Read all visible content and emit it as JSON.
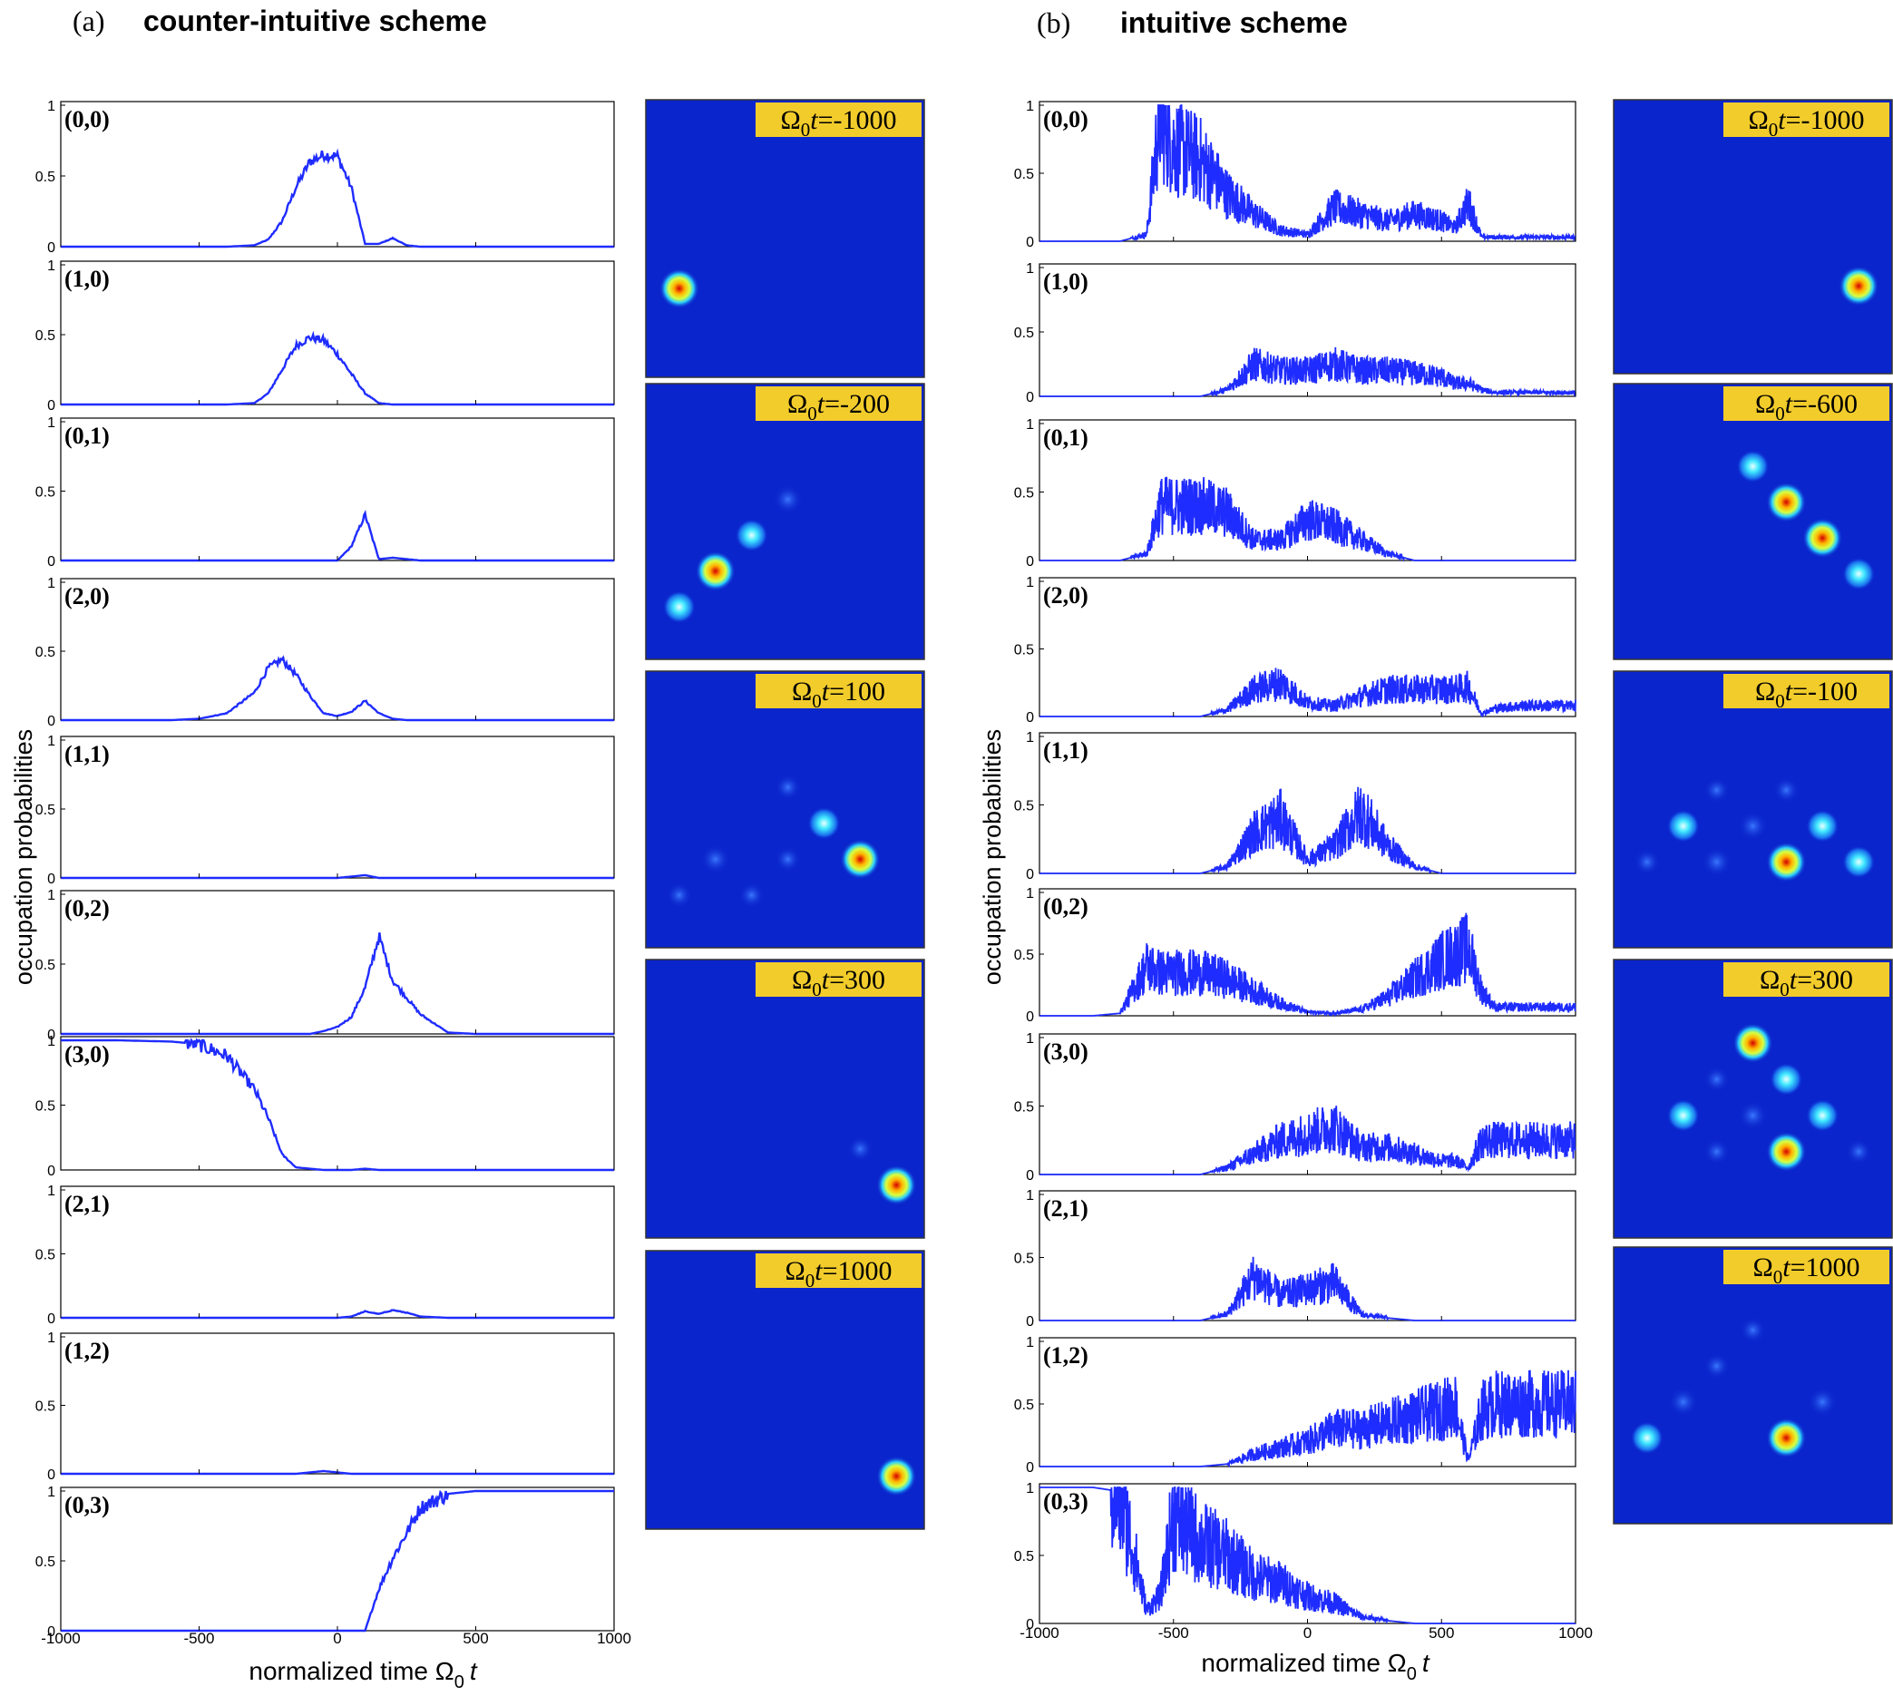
{
  "panels": [
    {
      "letter": "(a)",
      "title": "counter-intuitive scheme",
      "ylabel": "occupation probabilities",
      "xlabel": "normalized time Ω",
      "xlabel_sub": "0",
      "xlabel_var": "t",
      "xticks": [
        -1000,
        -500,
        0,
        500,
        1000
      ],
      "yticks": [
        0,
        0.5,
        1
      ],
      "states": [
        "(0,0)",
        "(1,0)",
        "(0,1)",
        "(2,0)",
        "(1,1)",
        "(0,2)",
        "(3,0)",
        "(2,1)",
        "(1,2)",
        "(0,3)"
      ],
      "snapshots": [
        {
          "label": "=-1000",
          "spots": [
            {
              "x": 0.12,
              "y": 0.68,
              "r": 1.0
            }
          ]
        },
        {
          "label": "=-200",
          "spots": [
            {
              "x": 0.12,
              "y": 0.81,
              "r": 0.3
            },
            {
              "x": 0.25,
              "y": 0.68,
              "r": 0.7
            },
            {
              "x": 0.38,
              "y": 0.55,
              "r": 0.3
            },
            {
              "x": 0.51,
              "y": 0.42,
              "r": 0.1
            }
          ]
        },
        {
          "label": "=100",
          "spots": [
            {
              "x": 0.25,
              "y": 0.68,
              "r": 0.1
            },
            {
              "x": 0.51,
              "y": 0.68,
              "r": 0.05
            },
            {
              "x": 0.64,
              "y": 0.55,
              "r": 0.4
            },
            {
              "x": 0.77,
              "y": 0.68,
              "r": 0.85
            },
            {
              "x": 0.51,
              "y": 0.42,
              "r": 0.05
            },
            {
              "x": 0.12,
              "y": 0.81,
              "r": 0.03
            },
            {
              "x": 0.38,
              "y": 0.81,
              "r": 0.05
            }
          ]
        },
        {
          "label": "=300",
          "spots": [
            {
              "x": 0.77,
              "y": 0.68,
              "r": 0.05
            },
            {
              "x": 0.9,
              "y": 0.81,
              "r": 0.9
            }
          ]
        },
        {
          "label": "=1000",
          "spots": [
            {
              "x": 0.9,
              "y": 0.81,
              "r": 0.95
            }
          ]
        }
      ]
    },
    {
      "letter": "(b)",
      "title": "intuitive scheme",
      "ylabel": "occupation probabilities",
      "xlabel": "normalized time Ω",
      "xlabel_sub": "0",
      "xlabel_var": "t",
      "xticks": [
        -1000,
        -500,
        0,
        500,
        1000
      ],
      "yticks": [
        0,
        0.5,
        1
      ],
      "states": [
        "(0,0)",
        "(1,0)",
        "(0,1)",
        "(2,0)",
        "(1,1)",
        "(0,2)",
        "(3,0)",
        "(2,1)",
        "(1,2)",
        "(0,3)"
      ],
      "snapshots": [
        {
          "label": "=-1000",
          "spots": [
            {
              "x": 0.88,
              "y": 0.68,
              "r": 1.0
            }
          ]
        },
        {
          "label": "=-600",
          "spots": [
            {
              "x": 0.5,
              "y": 0.3,
              "r": 0.2
            },
            {
              "x": 0.62,
              "y": 0.43,
              "r": 0.85
            },
            {
              "x": 0.75,
              "y": 0.56,
              "r": 0.85
            },
            {
              "x": 0.88,
              "y": 0.69,
              "r": 0.2
            }
          ]
        },
        {
          "label": "=-100",
          "spots": [
            {
              "x": 0.25,
              "y": 0.56,
              "r": 0.25
            },
            {
              "x": 0.5,
              "y": 0.56,
              "r": 0.1
            },
            {
              "x": 0.75,
              "y": 0.56,
              "r": 0.25
            },
            {
              "x": 0.62,
              "y": 0.69,
              "r": 0.85
            },
            {
              "x": 0.88,
              "y": 0.69,
              "r": 0.25
            },
            {
              "x": 0.37,
              "y": 0.69,
              "r": 0.1
            },
            {
              "x": 0.37,
              "y": 0.43,
              "r": 0.05
            },
            {
              "x": 0.62,
              "y": 0.43,
              "r": 0.05
            },
            {
              "x": 0.12,
              "y": 0.69,
              "r": 0.02
            }
          ]
        },
        {
          "label": "=300",
          "spots": [
            {
              "x": 0.5,
              "y": 0.3,
              "r": 0.85
            },
            {
              "x": 0.62,
              "y": 0.43,
              "r": 0.25
            },
            {
              "x": 0.25,
              "y": 0.56,
              "r": 0.4
            },
            {
              "x": 0.5,
              "y": 0.56,
              "r": 0.1
            },
            {
              "x": 0.75,
              "y": 0.56,
              "r": 0.3
            },
            {
              "x": 0.62,
              "y": 0.69,
              "r": 0.85
            },
            {
              "x": 0.37,
              "y": 0.69,
              "r": 0.05
            },
            {
              "x": 0.88,
              "y": 0.69,
              "r": 0.05
            },
            {
              "x": 0.37,
              "y": 0.43,
              "r": 0.02
            }
          ]
        },
        {
          "label": "=1000",
          "spots": [
            {
              "x": 0.5,
              "y": 0.3,
              "r": 0.05
            },
            {
              "x": 0.37,
              "y": 0.43,
              "r": 0.05
            },
            {
              "x": 0.25,
              "y": 0.56,
              "r": 0.1
            },
            {
              "x": 0.75,
              "y": 0.56,
              "r": 0.1
            },
            {
              "x": 0.12,
              "y": 0.69,
              "r": 0.4
            },
            {
              "x": 0.62,
              "y": 0.69,
              "r": 0.85
            }
          ]
        }
      ]
    }
  ],
  "snapshot_prefix": "Ω",
  "snapshot_sub": "0",
  "snapshot_var": "t",
  "colors": {
    "line": "#1f2cff",
    "field": "#0a25cc",
    "badge": "#f2cc2b"
  },
  "chart_data": [
    {
      "type": "line",
      "title": "counter-intuitive scheme",
      "xlabel": "normalized time Ω0 t",
      "ylabel": "occupation probabilities",
      "xlim": [
        -1000,
        1000
      ],
      "ylim": [
        0,
        1
      ],
      "x": [
        -1000,
        -800,
        -600,
        -500,
        -400,
        -300,
        -250,
        -200,
        -150,
        -100,
        -50,
        0,
        50,
        100,
        150,
        200,
        250,
        300,
        400,
        500,
        600,
        800,
        1000
      ],
      "series": [
        {
          "name": "(0,0)",
          "values": [
            0,
            0,
            0,
            0,
            0,
            0.01,
            0.05,
            0.18,
            0.42,
            0.6,
            0.65,
            0.64,
            0.42,
            0.02,
            0.02,
            0.06,
            0.01,
            0,
            0,
            0,
            0,
            0,
            0
          ]
        },
        {
          "name": "(1,0)",
          "values": [
            0,
            0,
            0,
            0,
            0,
            0.01,
            0.08,
            0.25,
            0.42,
            0.48,
            0.46,
            0.36,
            0.22,
            0.08,
            0.01,
            0,
            0,
            0,
            0,
            0,
            0,
            0,
            0
          ]
        },
        {
          "name": "(0,1)",
          "values": [
            0,
            0,
            0,
            0,
            0,
            0,
            0,
            0,
            0,
            0,
            0,
            0,
            0.1,
            0.33,
            0.01,
            0.02,
            0.01,
            0,
            0,
            0,
            0,
            0,
            0
          ]
        },
        {
          "name": "(2,0)",
          "values": [
            0,
            0,
            0,
            0.01,
            0.05,
            0.2,
            0.38,
            0.44,
            0.33,
            0.18,
            0.05,
            0.03,
            0.06,
            0.14,
            0.05,
            0.01,
            0,
            0,
            0,
            0,
            0,
            0,
            0
          ]
        },
        {
          "name": "(1,1)",
          "values": [
            0,
            0,
            0,
            0,
            0,
            0,
            0,
            0,
            0,
            0,
            0,
            0,
            0.01,
            0.02,
            0,
            0,
            0,
            0,
            0,
            0,
            0,
            0,
            0
          ]
        },
        {
          "name": "(0,2)",
          "values": [
            0,
            0,
            0,
            0,
            0,
            0,
            0,
            0,
            0,
            0,
            0.02,
            0.05,
            0.12,
            0.33,
            0.7,
            0.38,
            0.26,
            0.14,
            0.01,
            0,
            0,
            0,
            0
          ]
        },
        {
          "name": "(3,0)",
          "values": [
            1,
            1,
            0.99,
            0.97,
            0.88,
            0.62,
            0.4,
            0.12,
            0.02,
            0.01,
            0,
            0,
            0,
            0.01,
            0,
            0,
            0,
            0,
            0,
            0,
            0,
            0,
            0
          ]
        },
        {
          "name": "(2,1)",
          "values": [
            0,
            0,
            0,
            0,
            0,
            0,
            0,
            0,
            0,
            0,
            0,
            0,
            0.01,
            0.05,
            0.03,
            0.06,
            0.04,
            0.01,
            0,
            0,
            0,
            0,
            0
          ]
        },
        {
          "name": "(1,2)",
          "values": [
            0,
            0,
            0,
            0,
            0,
            0,
            0,
            0,
            0,
            0.01,
            0.02,
            0.01,
            0,
            0,
            0,
            0,
            0,
            0,
            0,
            0,
            0,
            0,
            0
          ]
        },
        {
          "name": "(0,3)",
          "values": [
            0,
            0,
            0,
            0,
            0,
            0,
            0,
            0,
            0,
            0,
            0,
            0,
            0,
            0,
            0.3,
            0.52,
            0.7,
            0.88,
            0.98,
            1,
            1,
            1,
            1
          ]
        }
      ]
    },
    {
      "type": "line",
      "title": "intuitive scheme",
      "xlabel": "normalized time Ω0 t",
      "ylabel": "occupation probabilities",
      "xlim": [
        -1000,
        1000
      ],
      "ylim": [
        0,
        1
      ],
      "x": [
        -1000,
        -800,
        -700,
        -600,
        -550,
        -500,
        -400,
        -300,
        -200,
        -100,
        0,
        100,
        200,
        300,
        400,
        500,
        550,
        600,
        650,
        700,
        800,
        1000
      ],
      "series": [
        {
          "name": "(0,0)",
          "values": [
            0,
            0,
            0,
            0.05,
            0.95,
            0.7,
            0.6,
            0.35,
            0.2,
            0.08,
            0.05,
            0.25,
            0.2,
            0.15,
            0.2,
            0.15,
            0.1,
            0.28,
            0.03,
            0.03,
            0.03,
            0.03
          ]
        },
        {
          "name": "(1,0)",
          "values": [
            0,
            0,
            0,
            0,
            0,
            0,
            0,
            0.05,
            0.25,
            0.2,
            0.2,
            0.25,
            0.2,
            0.2,
            0.18,
            0.15,
            0.1,
            0.1,
            0.05,
            0.03,
            0.03,
            0.03
          ]
        },
        {
          "name": "(0,1)",
          "values": [
            0,
            0,
            0,
            0.05,
            0.4,
            0.4,
            0.4,
            0.35,
            0.15,
            0.15,
            0.3,
            0.25,
            0.15,
            0.05,
            0,
            0,
            0,
            0,
            0,
            0,
            0,
            0
          ]
        },
        {
          "name": "(2,0)",
          "values": [
            0,
            0,
            0,
            0,
            0,
            0,
            0,
            0.05,
            0.2,
            0.25,
            0.1,
            0.08,
            0.15,
            0.2,
            0.2,
            0.2,
            0.2,
            0.22,
            0.02,
            0.06,
            0.08,
            0.08
          ]
        },
        {
          "name": "(1,1)",
          "values": [
            0,
            0,
            0,
            0,
            0,
            0,
            0,
            0.05,
            0.3,
            0.4,
            0.1,
            0.2,
            0.45,
            0.2,
            0.05,
            0,
            0,
            0,
            0,
            0,
            0,
            0
          ]
        },
        {
          "name": "(0,2)",
          "values": [
            0,
            0,
            0.02,
            0.4,
            0.35,
            0.35,
            0.35,
            0.3,
            0.2,
            0.1,
            0.03,
            0.02,
            0.05,
            0.15,
            0.3,
            0.45,
            0.5,
            0.55,
            0.2,
            0.07,
            0.07,
            0.07
          ]
        },
        {
          "name": "(3,0)",
          "values": [
            0,
            0,
            0,
            0,
            0,
            0,
            0,
            0.05,
            0.15,
            0.25,
            0.3,
            0.35,
            0.2,
            0.2,
            0.15,
            0.1,
            0.1,
            0.05,
            0.25,
            0.25,
            0.25,
            0.25
          ]
        },
        {
          "name": "(2,1)",
          "values": [
            0,
            0,
            0,
            0,
            0,
            0,
            0,
            0.05,
            0.35,
            0.2,
            0.25,
            0.3,
            0.05,
            0.02,
            0,
            0,
            0,
            0,
            0,
            0,
            0,
            0
          ]
        },
        {
          "name": "(1,2)",
          "values": [
            0,
            0,
            0,
            0,
            0,
            0,
            0,
            0.02,
            0.1,
            0.15,
            0.2,
            0.3,
            0.3,
            0.35,
            0.4,
            0.45,
            0.5,
            0.05,
            0.45,
            0.5,
            0.5,
            0.5
          ]
        },
        {
          "name": "(0,3)",
          "values": [
            1,
            1,
            0.97,
            0.1,
            0.2,
            0.8,
            0.6,
            0.5,
            0.35,
            0.3,
            0.2,
            0.15,
            0.05,
            0.02,
            0,
            0,
            0,
            0,
            0,
            0,
            0,
            0
          ]
        }
      ]
    }
  ]
}
